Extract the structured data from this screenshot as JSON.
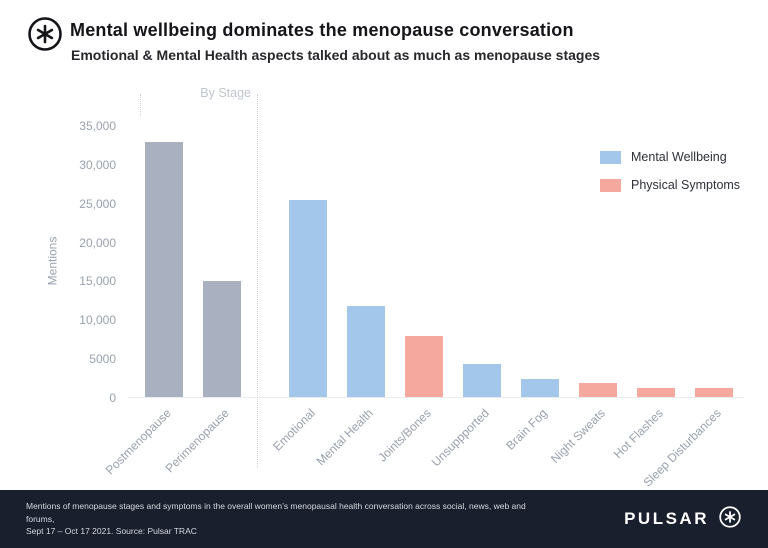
{
  "header": {
    "title": "Mental wellbeing dominates the menopause conversation",
    "subtitle": "Emotional & Mental Health aspects talked about as much as menopause stages"
  },
  "chart_data": {
    "type": "bar",
    "ylabel": "Mentions",
    "ylim": [
      0,
      35000
    ],
    "grid": false,
    "legend_position": "right",
    "yticks": [
      {
        "value": 0,
        "label": "0"
      },
      {
        "value": 5000,
        "label": "5000"
      },
      {
        "value": 10000,
        "label": "10,000"
      },
      {
        "value": 15000,
        "label": "15,000"
      },
      {
        "value": 20000,
        "label": "20,000"
      },
      {
        "value": 25000,
        "label": "25,000"
      },
      {
        "value": 30000,
        "label": "30,000"
      },
      {
        "value": 35000,
        "label": "35,000"
      }
    ],
    "group_annotation": "By Stage",
    "bars": [
      {
        "label": "Postmenopause",
        "value": 32800,
        "series": "stage"
      },
      {
        "label": "Perimenopause",
        "value": 14900,
        "series": "stage"
      },
      {
        "label": "Emotional",
        "value": 25300,
        "series": "mental"
      },
      {
        "label": "Mental Health",
        "value": 11700,
        "series": "mental"
      },
      {
        "label": "Joints/Bones",
        "value": 7900,
        "series": "physical"
      },
      {
        "label": "Unsuppported",
        "value": 4300,
        "series": "mental"
      },
      {
        "label": "Brain Fog",
        "value": 2300,
        "series": "mental"
      },
      {
        "label": "Night Sweats",
        "value": 1800,
        "series": "physical"
      },
      {
        "label": "Hot Flashes",
        "value": 1200,
        "series": "physical"
      },
      {
        "label": "Sleep Disturbances",
        "value": 1100,
        "series": "physical"
      }
    ],
    "colors": {
      "stage": "#a9b0bf",
      "mental": "#a3c7ea",
      "physical": "#f4a89e"
    },
    "legend": [
      {
        "label": "Mental Wellbeing",
        "series": "mental"
      },
      {
        "label": "Physical Symptoms",
        "series": "physical"
      }
    ]
  },
  "footer": {
    "caption_line1": "Mentions of menopause stages and symptoms in the overall women’s menopausal health conversation across social, news, web and forums,",
    "caption_line2": "Sept 17 – Oct 17 2021. Source: Pulsar TRAC",
    "brand": "PULSAR"
  }
}
